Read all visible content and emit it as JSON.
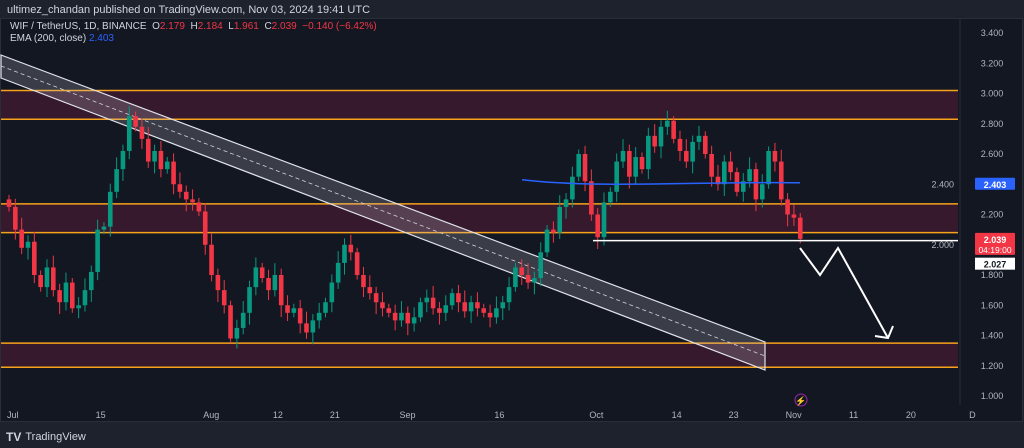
{
  "header": {
    "published": "ultimez_chandan published on TradingView.com, Nov 03, 2024 19:41 UTC"
  },
  "legend": {
    "symbol": "WIF / TetherUS, 1D, BINANCE",
    "o_label": "O",
    "o": "2.179",
    "h_label": "H",
    "h": "2.184",
    "l_label": "L",
    "l": "1.961",
    "c_label": "C",
    "c": "2.039",
    "change": "−0.140 (−6.42%)",
    "ema_label": "EMA (200, close)",
    "ema": "2.403"
  },
  "footer": {
    "brand": "TradingView"
  },
  "colors": {
    "up": "#089981",
    "down": "#f23645",
    "ema": "#2962ff",
    "zone": "#3d1a2f",
    "zone_line": "#f7a21b"
  },
  "chart_data": {
    "type": "candlestick",
    "start_date": "2024-07-01",
    "closes": [
      2.25,
      2.1,
      1.98,
      2.02,
      1.8,
      1.72,
      1.85,
      1.7,
      1.62,
      1.75,
      1.58,
      1.6,
      1.7,
      1.82,
      2.1,
      2.12,
      2.35,
      2.5,
      2.62,
      2.85,
      2.78,
      2.7,
      2.55,
      2.62,
      2.5,
      2.55,
      2.4,
      2.35,
      2.3,
      2.28,
      2.22,
      2.0,
      1.8,
      1.7,
      1.6,
      1.38,
      1.45,
      1.55,
      1.72,
      1.85,
      1.78,
      1.7,
      1.8,
      1.6,
      1.55,
      1.58,
      1.48,
      1.42,
      1.5,
      1.55,
      1.62,
      1.75,
      1.88,
      2.0,
      1.95,
      1.8,
      1.72,
      1.68,
      1.62,
      1.58,
      1.55,
      1.5,
      1.55,
      1.48,
      1.52,
      1.62,
      1.65,
      1.58,
      1.55,
      1.6,
      1.68,
      1.62,
      1.56,
      1.62,
      1.58,
      1.55,
      1.52,
      1.58,
      1.62,
      1.72,
      1.85,
      1.8,
      1.75,
      1.78,
      1.95,
      2.1,
      2.08,
      2.25,
      2.3,
      2.45,
      2.6,
      2.42,
      2.2,
      2.05,
      2.28,
      2.35,
      2.55,
      2.62,
      2.45,
      2.58,
      2.5,
      2.72,
      2.65,
      2.78,
      2.82,
      2.7,
      2.62,
      2.55,
      2.68,
      2.72,
      2.6,
      2.45,
      2.4,
      2.55,
      2.48,
      2.35,
      2.42,
      2.5,
      2.3,
      2.4,
      2.62,
      2.55,
      2.3,
      2.2,
      2.179,
      2.039
    ],
    "ylim": [
      1.0,
      3.4
    ],
    "y_ticks": [
      "3.400",
      "3.200",
      "3.000",
      "2.800",
      "2.600",
      "2.400",
      "2.200",
      "2.000",
      "1.800",
      "1.600",
      "1.400",
      "1.200",
      "1.000"
    ],
    "x_ticks": [
      "Jul",
      "15",
      "Aug",
      "12",
      "21",
      "Sep",
      "16",
      "Oct",
      "14",
      "23",
      "Nov",
      "11",
      "20",
      "D"
    ],
    "zones": [
      [
        2.83,
        3.02
      ],
      [
        2.08,
        2.27
      ],
      [
        1.19,
        1.35
      ]
    ],
    "ema_value": 2.403,
    "support_level": 2.027,
    "price_labels": {
      "ema": "2.403",
      "last": "2.039",
      "countdown": "04:19:00",
      "support": "2.027"
    }
  }
}
